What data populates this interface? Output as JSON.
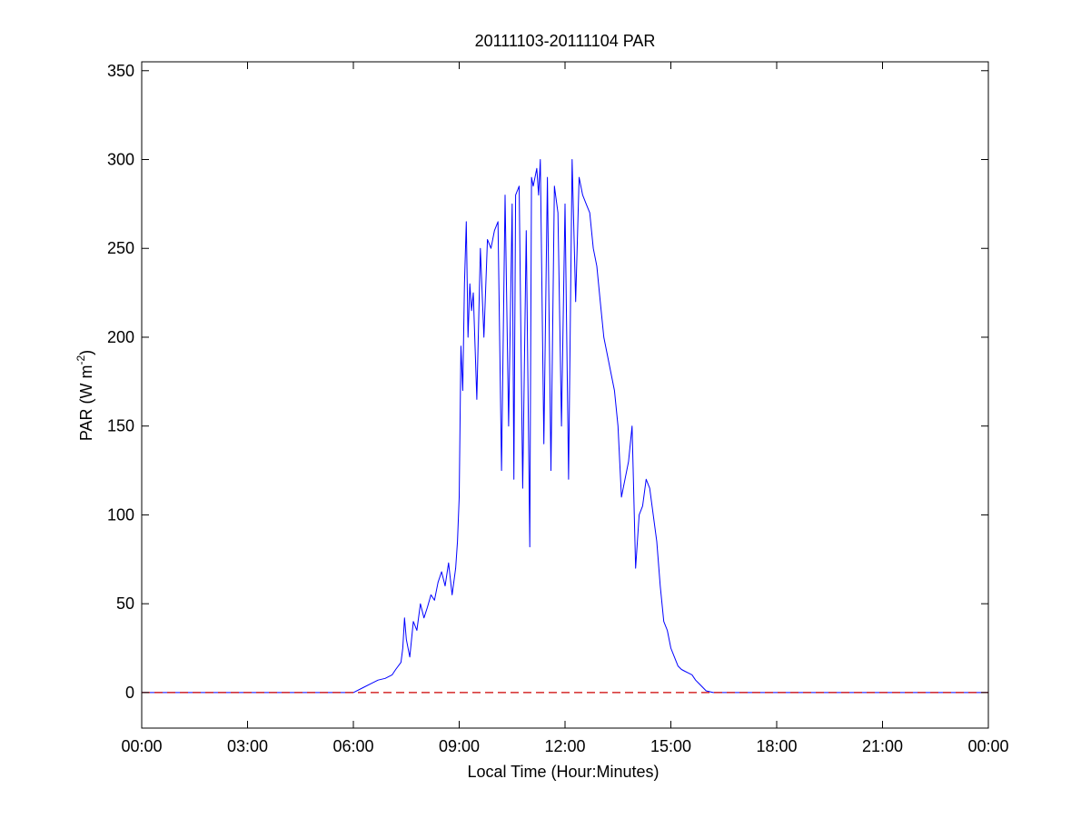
{
  "chart_data": {
    "type": "line",
    "title": "20111103-20111104 PAR",
    "xlabel": "Local Time (Hour:Minutes)",
    "ylabel_main": "PAR (W m",
    "ylabel_sup": "-2",
    "ylabel_end": ")",
    "xlim": [
      0,
      24
    ],
    "ylim": [
      -20,
      355
    ],
    "x_ticks": [
      0,
      3,
      6,
      9,
      12,
      15,
      18,
      21,
      24
    ],
    "x_tick_labels": [
      "00:00",
      "03:00",
      "06:00",
      "09:00",
      "12:00",
      "15:00",
      "18:00",
      "21:00",
      "00:00"
    ],
    "y_ticks": [
      0,
      50,
      100,
      150,
      200,
      250,
      300,
      350
    ],
    "y_tick_labels": [
      "0",
      "50",
      "100",
      "150",
      "200",
      "250",
      "300",
      "350"
    ],
    "grid": false,
    "legend": "none",
    "colors": {
      "series": "#0000ff",
      "baseline": "#cc0000",
      "axes": "#000000"
    },
    "series": [
      {
        "style": "solid",
        "x": [
          0,
          6.0,
          6.3,
          6.5,
          6.7,
          6.9,
          7.1,
          7.2,
          7.35,
          7.4,
          7.45,
          7.5,
          7.6,
          7.7,
          7.8,
          7.9,
          8.0,
          8.1,
          8.2,
          8.3,
          8.4,
          8.5,
          8.6,
          8.7,
          8.8,
          8.9,
          8.95,
          9.0,
          9.05,
          9.1,
          9.15,
          9.2,
          9.25,
          9.3,
          9.35,
          9.4,
          9.5,
          9.6,
          9.7,
          9.8,
          9.9,
          10.0,
          10.1,
          10.2,
          10.3,
          10.4,
          10.5,
          10.55,
          10.6,
          10.7,
          10.8,
          10.9,
          11.0,
          11.05,
          11.1,
          11.2,
          11.25,
          11.3,
          11.4,
          11.5,
          11.6,
          11.7,
          11.8,
          11.9,
          12.0,
          12.1,
          12.2,
          12.3,
          12.4,
          12.5,
          12.6,
          12.7,
          12.8,
          12.9,
          13.0,
          13.1,
          13.2,
          13.3,
          13.4,
          13.5,
          13.6,
          13.7,
          13.8,
          13.9,
          14.0,
          14.1,
          14.2,
          14.3,
          14.4,
          14.5,
          14.6,
          14.7,
          14.8,
          14.9,
          15.0,
          15.1,
          15.2,
          15.3,
          15.4,
          15.5,
          15.6,
          15.7,
          15.8,
          15.9,
          16.0,
          16.2,
          16.4,
          16.6,
          16.8,
          17.0,
          17.2,
          24
        ],
        "y": [
          0,
          0,
          3,
          5,
          7,
          8,
          10,
          13,
          17,
          25,
          42,
          30,
          20,
          40,
          35,
          50,
          42,
          48,
          55,
          52,
          62,
          68,
          60,
          73,
          55,
          70,
          85,
          110,
          195,
          170,
          230,
          265,
          200,
          230,
          215,
          225,
          165,
          250,
          200,
          255,
          250,
          260,
          265,
          125,
          280,
          150,
          275,
          120,
          280,
          285,
          115,
          260,
          82,
          290,
          285,
          295,
          280,
          300,
          140,
          290,
          125,
          285,
          270,
          150,
          275,
          120,
          300,
          220,
          290,
          280,
          275,
          270,
          250,
          240,
          220,
          200,
          190,
          180,
          170,
          150,
          110,
          120,
          130,
          150,
          70,
          100,
          105,
          120,
          115,
          100,
          85,
          60,
          40,
          35,
          25,
          20,
          15,
          13,
          12,
          11,
          10,
          7,
          5,
          3,
          1,
          0,
          0,
          0,
          0,
          0,
          0,
          0
        ]
      },
      {
        "style": "dashed",
        "x": [
          0,
          24
        ],
        "y": [
          0,
          0
        ]
      }
    ]
  }
}
